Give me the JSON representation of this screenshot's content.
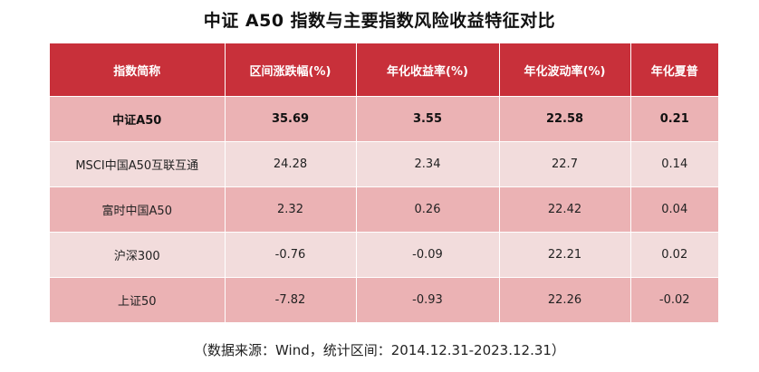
{
  "title": "中证 A50 指数与主要指数风险收益特征对比",
  "chart_data": {
    "type": "table",
    "title": "中证 A50 指数与主要指数风险收益特征对比",
    "columns": [
      "指数简称",
      "区间涨跌幅(%)",
      "年化收益率(%)",
      "年化波动率(%)",
      "年化夏普"
    ],
    "rows": [
      [
        "中证A50",
        "35.69",
        "3.55",
        "22.58",
        "0.21"
      ],
      [
        "MSCI中国A50互联互通",
        "24.28",
        "2.34",
        "22.7",
        "0.14"
      ],
      [
        "富时中国A50",
        "2.32",
        "0.26",
        "22.42",
        "0.04"
      ],
      [
        "沪深300",
        "-0.76",
        "-0.09",
        "22.21",
        "0.02"
      ],
      [
        "上证50",
        "-7.82",
        "-0.93",
        "22.26",
        "-0.02"
      ]
    ]
  },
  "note": "（数据来源：Wind，统计区间：2014.12.31-2023.12.31）",
  "colors": {
    "header": "#c8303a",
    "row_dark": "#ebb2b4",
    "row_light": "#f2dcdc"
  }
}
